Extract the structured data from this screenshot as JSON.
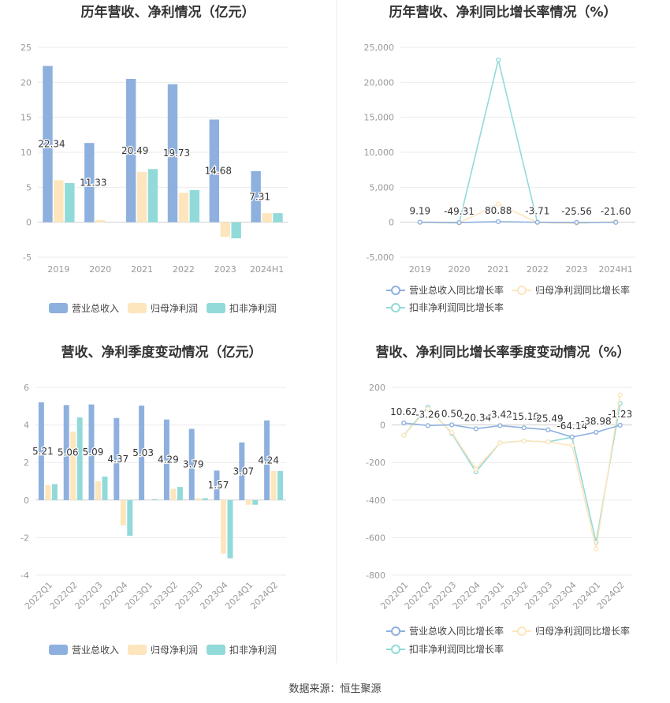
{
  "colors": {
    "revenue": "#8eb0de",
    "net_profit": "#fde6bd",
    "deducted_profit": "#92dad9",
    "axis_text": "#999999",
    "grid": "#ebebeb",
    "label_text": "#333333",
    "title_text": "#333333",
    "divider": "#e8e8e8"
  },
  "source_text": "数据来源：恒生聚源",
  "chart_data": [
    {
      "id": "annual-values",
      "type": "bar",
      "title": "历年营收、净利情况（亿元）",
      "categories": [
        "2019",
        "2020",
        "2021",
        "2022",
        "2023",
        "2024H1"
      ],
      "ylim": [
        -5,
        25
      ],
      "yticks": [
        -5,
        0,
        5,
        10,
        15,
        20,
        25
      ],
      "ytick_labels": [
        "-5",
        "0",
        "5",
        "10",
        "15",
        "20",
        "25"
      ],
      "grid": true,
      "legend_position": "bottom",
      "series": [
        {
          "name": "营业总收入",
          "color_key": "revenue",
          "values": [
            22.34,
            11.33,
            20.49,
            19.73,
            14.68,
            7.31
          ],
          "labels": [
            "22.34",
            "11.33",
            "20.49",
            "19.73",
            "14.68",
            "7.31"
          ]
        },
        {
          "name": "归母净利润",
          "color_key": "net_profit",
          "values": [
            6.0,
            0.3,
            7.2,
            4.2,
            -2.1,
            1.3
          ]
        },
        {
          "name": "扣非净利润",
          "color_key": "deducted_profit",
          "values": [
            5.6,
            0.0,
            7.6,
            4.6,
            -2.3,
            1.3
          ]
        }
      ]
    },
    {
      "id": "annual-growth",
      "type": "line",
      "title": "历年营收、净利同比增长率情况（%）",
      "categories": [
        "2019",
        "2020",
        "2021",
        "2022",
        "2023",
        "2024H1"
      ],
      "ylim": [
        -5000,
        25000
      ],
      "yticks": [
        -5000,
        0,
        5000,
        10000,
        15000,
        20000,
        25000
      ],
      "ytick_labels": [
        "-5,000",
        "0",
        "5,000",
        "10,000",
        "15,000",
        "20,000",
        "25,000"
      ],
      "grid": true,
      "legend_position": "bottom",
      "series": [
        {
          "name": "营业总收入同比增长率",
          "color_key": "revenue",
          "values": [
            9.19,
            -49.31,
            80.88,
            -3.71,
            -25.56,
            -21.6
          ],
          "labels": [
            "9.19",
            "-49.31",
            "80.88",
            "-3.71",
            "-25.56",
            "-21.60"
          ]
        },
        {
          "name": "归母净利润同比增长率",
          "color_key": "net_profit",
          "values": [
            -50,
            -95,
            2600,
            -40,
            -150,
            100
          ]
        },
        {
          "name": "扣非净利润同比增长率",
          "color_key": "deducted_profit",
          "values": [
            -30,
            -100,
            23200,
            -40,
            -150,
            80
          ]
        }
      ]
    },
    {
      "id": "quarterly-values",
      "type": "bar",
      "title": "营收、净利季度变动情况（亿元）",
      "categories": [
        "2022Q1",
        "2022Q2",
        "2022Q3",
        "2022Q4",
        "2023Q1",
        "2023Q2",
        "2023Q3",
        "2023Q4",
        "2024Q1",
        "2024Q2"
      ],
      "ylim": [
        -4,
        6
      ],
      "yticks": [
        -4,
        -2,
        0,
        2,
        4,
        6
      ],
      "ytick_labels": [
        "-4",
        "-2",
        "0",
        "2",
        "4",
        "6"
      ],
      "grid": true,
      "legend_position": "bottom",
      "series": [
        {
          "name": "营业总收入",
          "color_key": "revenue",
          "values": [
            5.21,
            5.06,
            5.09,
            4.37,
            5.03,
            4.29,
            3.79,
            1.57,
            3.07,
            4.24
          ],
          "labels": [
            "5.21",
            "5.06",
            "5.09",
            "4.37",
            "5.03",
            "4.29",
            "3.79",
            "1.57",
            "3.07",
            "4.24"
          ]
        },
        {
          "name": "归母净利润",
          "color_key": "net_profit",
          "values": [
            0.8,
            3.65,
            1.0,
            -1.35,
            0.0,
            0.6,
            0.1,
            -2.85,
            -0.25,
            1.55
          ]
        },
        {
          "name": "扣非净利润",
          "color_key": "deducted_profit",
          "values": [
            0.85,
            4.4,
            1.25,
            -1.9,
            0.05,
            0.7,
            0.1,
            -3.1,
            -0.25,
            1.55
          ]
        }
      ]
    },
    {
      "id": "quarterly-growth",
      "type": "line",
      "title": "营收、净利同比增长率季度变动情况（%）",
      "categories": [
        "2022Q1",
        "2022Q2",
        "2022Q3",
        "2022Q4",
        "2023Q1",
        "2023Q2",
        "2023Q3",
        "2023Q4",
        "2024Q1",
        "2024Q2"
      ],
      "ylim": [
        -800,
        200
      ],
      "yticks": [
        -800,
        -600,
        -400,
        -200,
        0,
        200
      ],
      "ytick_labels": [
        "-800",
        "-600",
        "-400",
        "-200",
        "0",
        "200"
      ],
      "grid": true,
      "legend_position": "bottom",
      "series": [
        {
          "name": "营业总收入同比增长率",
          "color_key": "revenue",
          "values": [
            10.62,
            -3.26,
            0.5,
            -20.34,
            -3.42,
            -15.1,
            -25.49,
            -64.14,
            -38.98,
            -1.23
          ],
          "labels": [
            "10.62",
            "-3.26",
            "0.50",
            "-20.34",
            "-3.42",
            "-15.10",
            "-25.49",
            "-64.14",
            "-38.98",
            "-1.23"
          ]
        },
        {
          "name": "归母净利润同比增长率",
          "color_key": "net_profit",
          "values": [
            -55,
            85,
            -40,
            -235,
            -95,
            -85,
            -90,
            -110,
            -660,
            160
          ]
        },
        {
          "name": "扣非净利润同比增长率",
          "color_key": "deducted_profit",
          "values": [
            -55,
            95,
            -45,
            -250,
            -95,
            -85,
            -90,
            -65,
            -625,
            115
          ]
        }
      ]
    }
  ]
}
